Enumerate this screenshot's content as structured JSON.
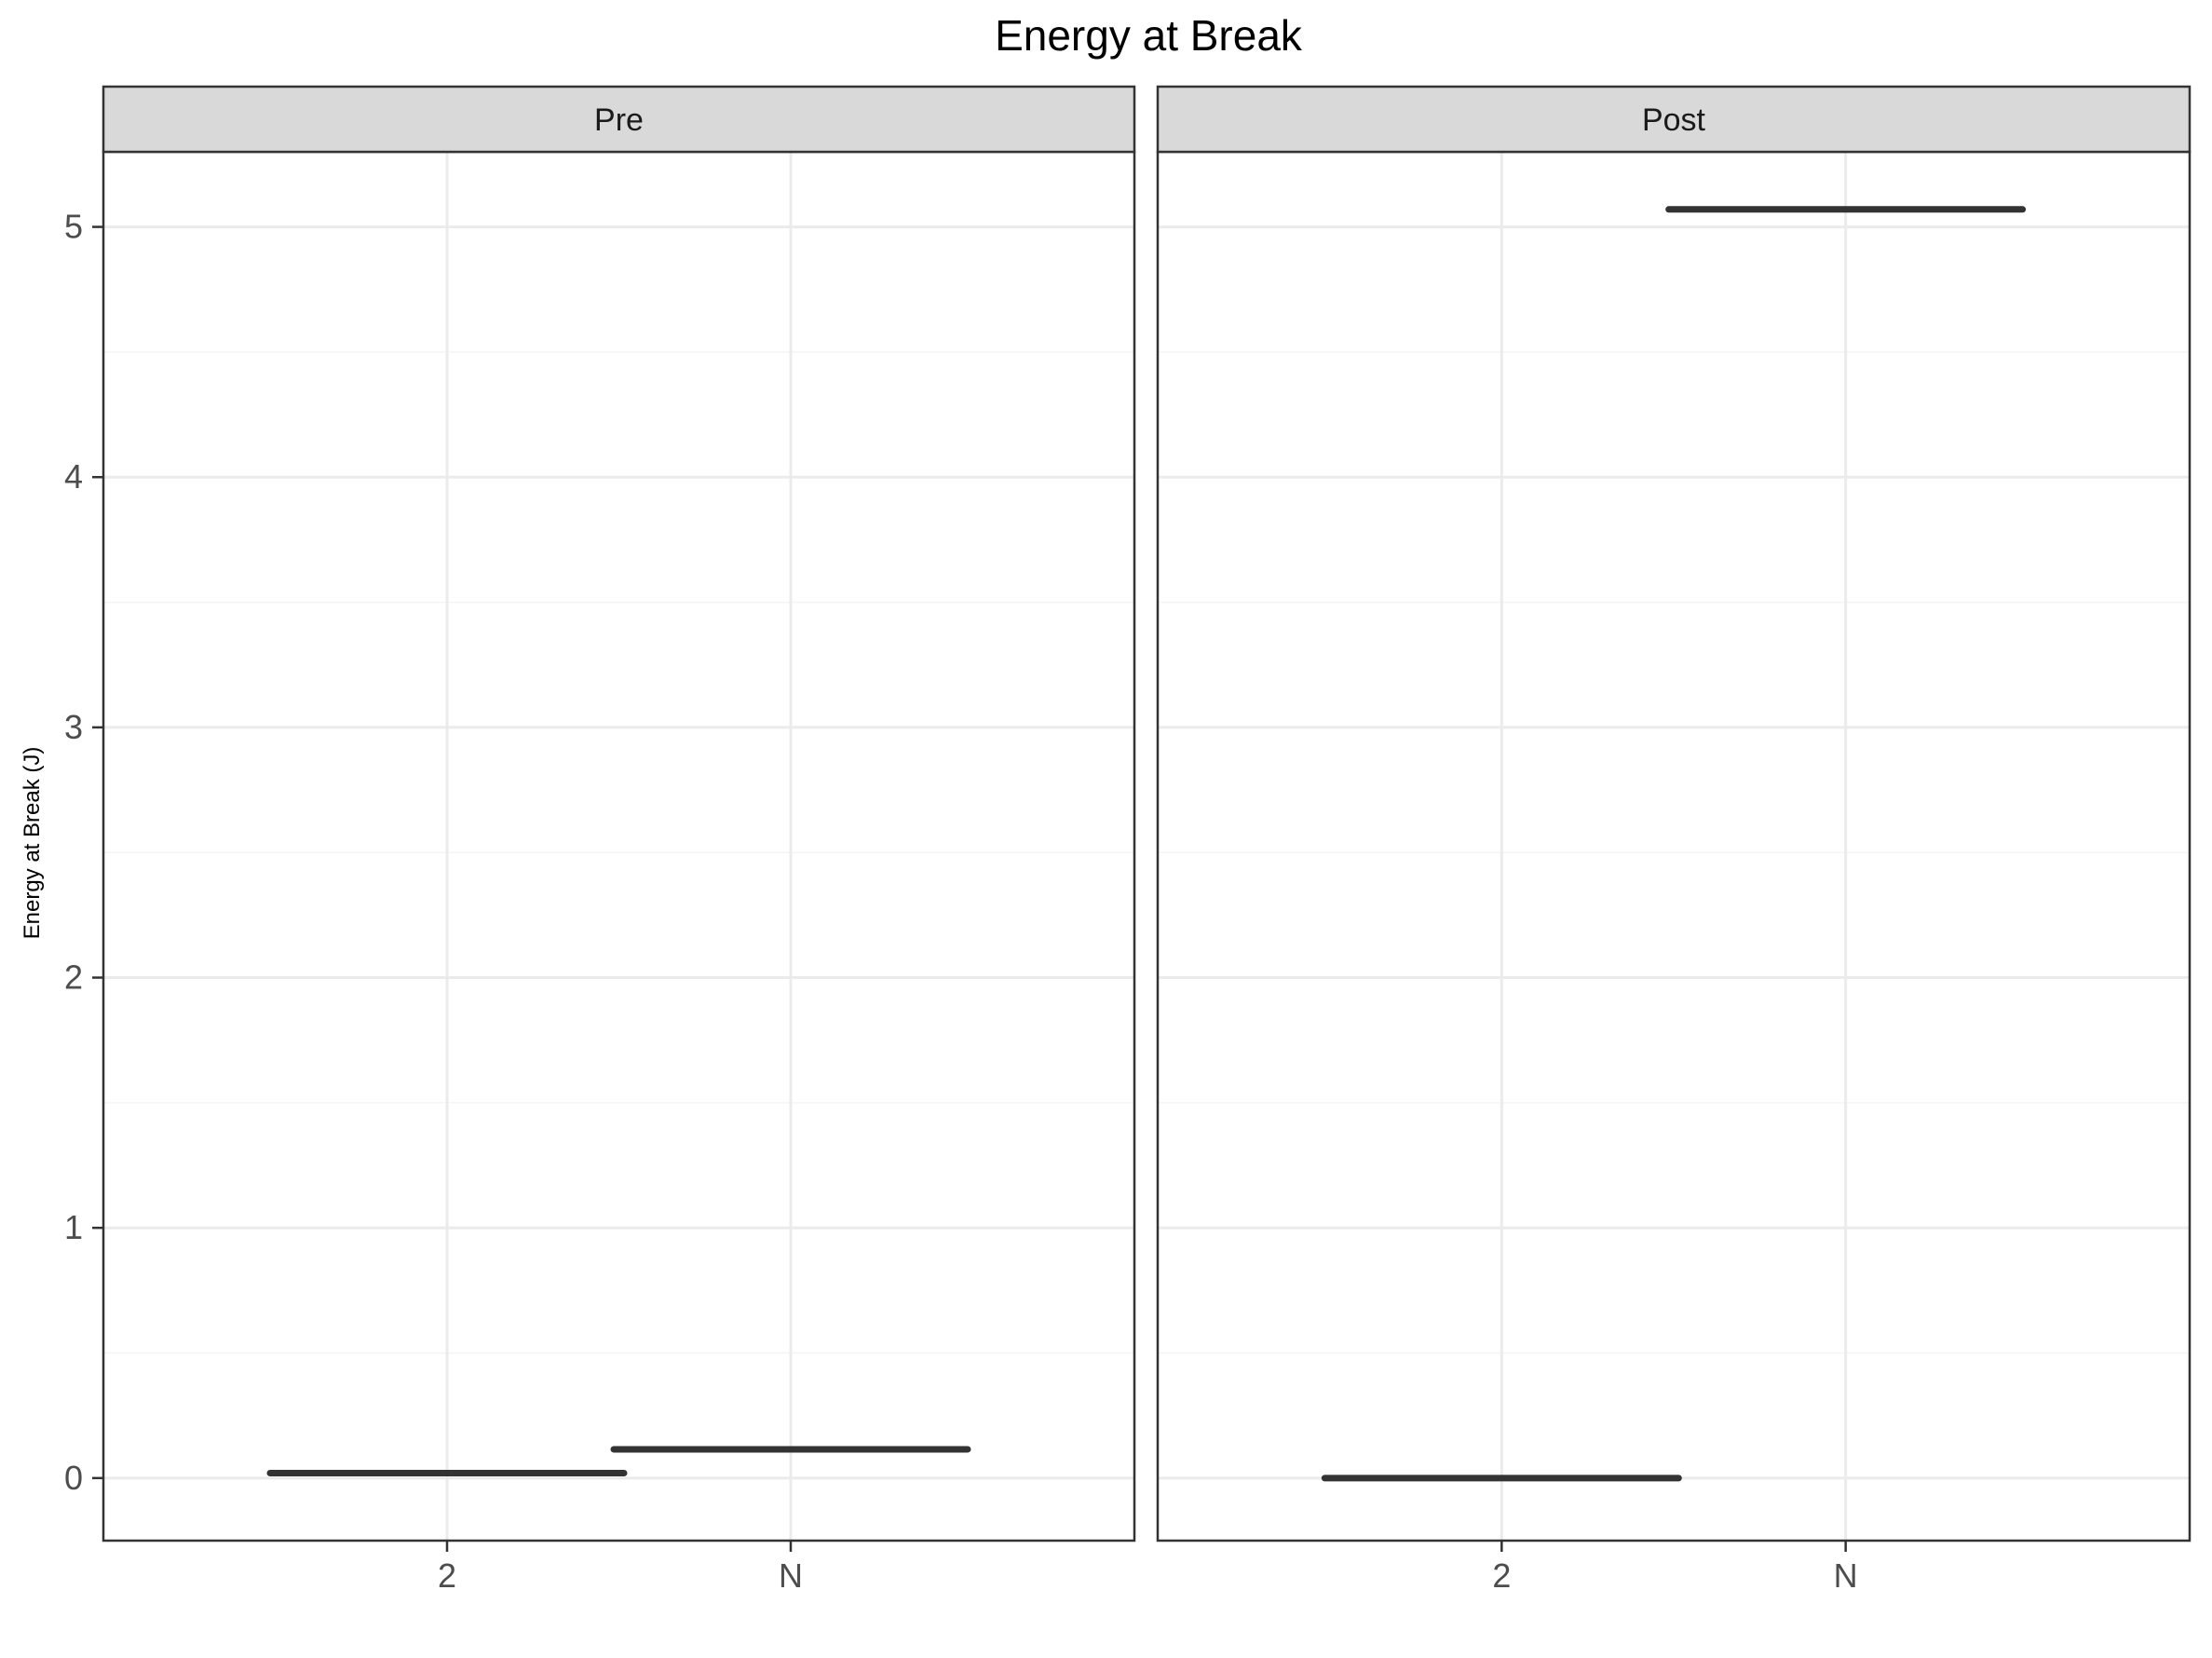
{
  "chart_data": {
    "type": "boxplot",
    "title": "Energy at Break",
    "xlabel": "",
    "ylabel": "Energy at Break (J)",
    "ylim": [
      -0.25,
      5.3
    ],
    "y_ticks": [
      0,
      1,
      2,
      3,
      4,
      5
    ],
    "y_tick_labels": [
      "0",
      "1",
      "2",
      "3",
      "4",
      "5"
    ],
    "categories": [
      "2",
      "N"
    ],
    "grid": true,
    "facets": [
      {
        "label": "Pre",
        "boxes": [
          {
            "category": "2",
            "value": 0.02
          },
          {
            "category": "N",
            "value": 0.115
          }
        ]
      },
      {
        "label": "Post",
        "boxes": [
          {
            "category": "2",
            "value": 0.0
          },
          {
            "category": "N",
            "value": 5.07
          }
        ]
      }
    ],
    "colors": {
      "panel_border": "#333333",
      "strip_fill": "#d9d9d9",
      "grid_major": "#ebebeb",
      "grid_minor": "#f4f4f4",
      "box_line": "#333333",
      "tick_text": "#4d4d4d",
      "strip_text": "#1a1a1a",
      "title_text": "#000000"
    }
  }
}
